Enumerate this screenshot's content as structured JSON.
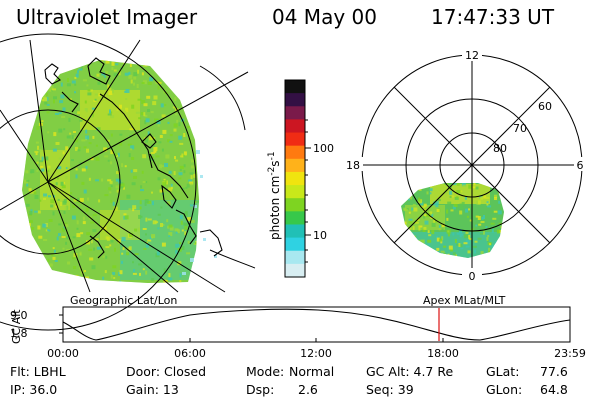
{
  "header": {
    "title": "Ultraviolet Imager",
    "date": "04 May 00",
    "time": "17:47:33 UT"
  },
  "colorbar": {
    "unit_label": "photon cm",
    "unit_sup1": "-2",
    "unit_mid": "s",
    "unit_sup2": "-1",
    "ticks": [
      "100",
      "10"
    ],
    "colors": [
      "#111111",
      "#331044",
      "#7a1a4a",
      "#cc1622",
      "#f02c14",
      "#ff7a10",
      "#ffb21a",
      "#f0e40f",
      "#c8e81a",
      "#7ed421",
      "#37c84a",
      "#21c0b6",
      "#2fd2e2",
      "#a8e8f0",
      "#d8eef2"
    ]
  },
  "left_panel": {
    "label": "Geographic Lat/Lon"
  },
  "right_panel": {
    "label": "Apex MLat/MLT",
    "mlt_labels": {
      "top": "12",
      "left": "18",
      "right": "6",
      "bottom": "0"
    },
    "lat_labels": [
      "60",
      "70",
      "80"
    ]
  },
  "altitude_plot": {
    "ylabel": "GC Alt",
    "yticks": [
      "9.0",
      "1.8"
    ],
    "xticks": [
      "00:00",
      "06:00",
      "12:00",
      "18:00",
      "23:59"
    ],
    "marker_color": "#dd1111"
  },
  "info": {
    "flt": "Flt: LBHL",
    "ip": "IP: 36.0",
    "door": "Door: Closed",
    "gain": "Gain: 13",
    "mode_label": "Mode:",
    "mode_value": "Normal",
    "dsp_label": "Dsp:",
    "dsp_value": "2.6",
    "gcalt": "GC Alt: 4.7 Re",
    "seq": "Seq: 39",
    "glat_label": "GLat:",
    "glat_value": "77.6",
    "glon_label": "GLon:",
    "glon_value": "64.8"
  }
}
